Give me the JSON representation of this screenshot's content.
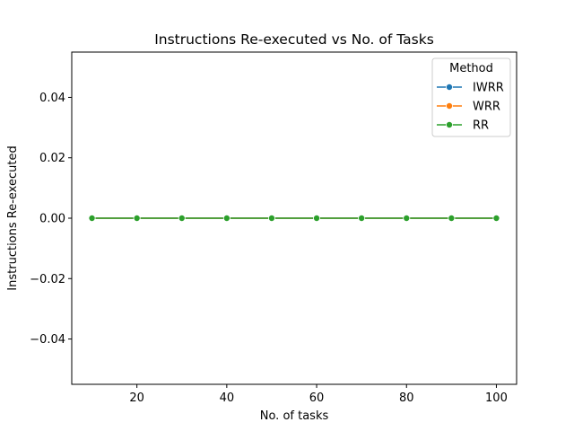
{
  "chart_data": {
    "type": "line",
    "title": "Instructions Re-executed vs No. of Tasks",
    "xlabel": "No. of tasks",
    "ylabel": "Instructions Re-executed",
    "x": [
      10,
      20,
      30,
      40,
      50,
      60,
      70,
      80,
      90,
      100
    ],
    "xlim": [
      5.5,
      104.5
    ],
    "ylim": [
      -0.055,
      0.055
    ],
    "xticks": [
      20,
      40,
      60,
      80,
      100
    ],
    "xtick_labels": [
      "20",
      "40",
      "60",
      "80",
      "100"
    ],
    "yticks": [
      -0.04,
      -0.02,
      0.0,
      0.02,
      0.04
    ],
    "ytick_labels": [
      "−0.04",
      "−0.02",
      "0.00",
      "0.02",
      "0.04"
    ],
    "grid": false,
    "legend": {
      "title": "Method",
      "placement": "top-right"
    },
    "series": [
      {
        "name": "IWRR",
        "color": "#1f77b4",
        "values": [
          0,
          0,
          0,
          0,
          0,
          0,
          0,
          0,
          0,
          0
        ]
      },
      {
        "name": "WRR",
        "color": "#ff7f0e",
        "values": [
          0,
          0,
          0,
          0,
          0,
          0,
          0,
          0,
          0,
          0
        ]
      },
      {
        "name": "RR",
        "color": "#2ca02c",
        "values": [
          0,
          0,
          0,
          0,
          0,
          0,
          0,
          0,
          0,
          0
        ]
      }
    ]
  }
}
